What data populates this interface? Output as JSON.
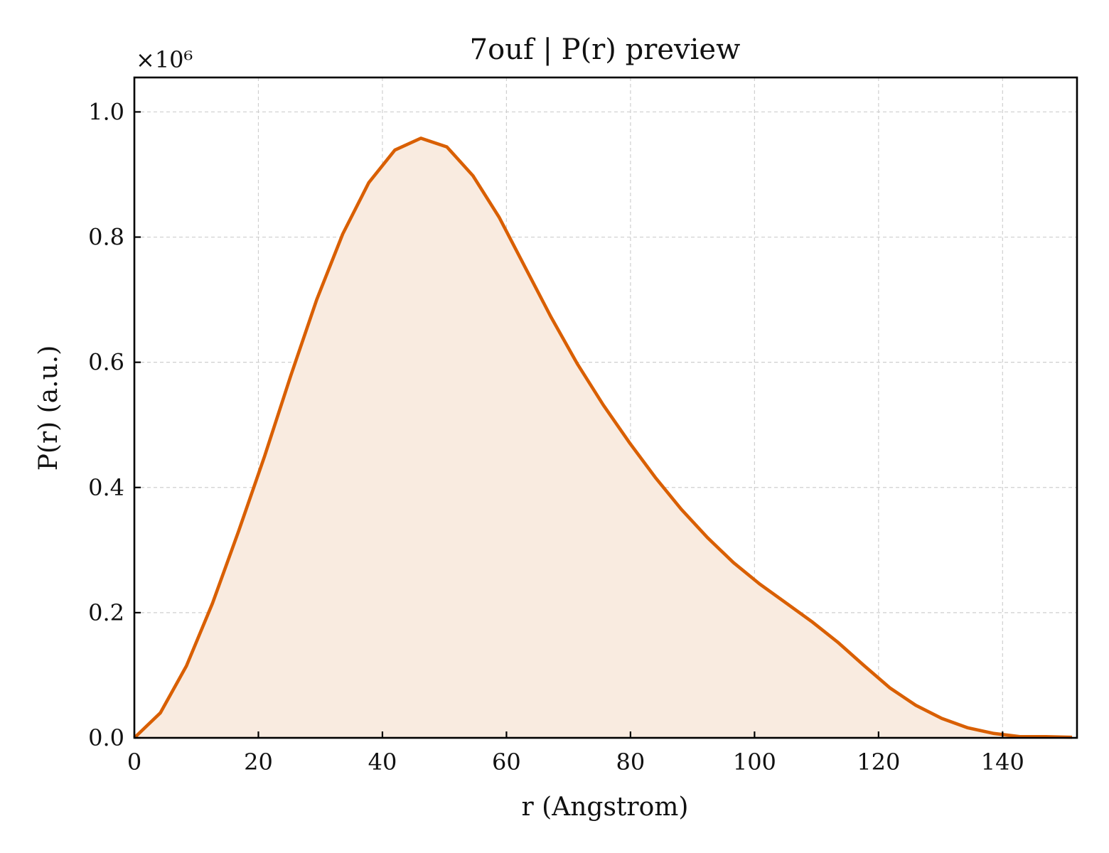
{
  "chart_data": {
    "type": "area",
    "title": "7ouf | P(r) preview",
    "xlabel": "r (Angstrom)",
    "ylabel": "P(r) (a.u.)",
    "y_multiplier_label": "×10⁶",
    "xlim": [
      0,
      152
    ],
    "ylim": [
      0,
      1.055
    ],
    "xticks": [
      0,
      20,
      40,
      60,
      80,
      100,
      120,
      140
    ],
    "xtick_labels": [
      "0",
      "20",
      "40",
      "60",
      "80",
      "100",
      "120",
      "140"
    ],
    "yticks": [
      0.0,
      0.2,
      0.4,
      0.6,
      0.8,
      1.0
    ],
    "ytick_labels": [
      "0.0",
      "0.2",
      "0.4",
      "0.6",
      "0.8",
      "1.0"
    ],
    "grid": true,
    "line_color": "#d95f02",
    "fill_color": "#f9ebe0",
    "series": [
      {
        "x": [
          0,
          4.2,
          8.4,
          12.6,
          16.8,
          21.0,
          25.2,
          29.4,
          33.6,
          37.8,
          42.0,
          46.2,
          50.4,
          54.6,
          58.8,
          63.0,
          67.2,
          71.4,
          75.6,
          79.8,
          84.0,
          88.2,
          92.4,
          96.6,
          100.8,
          105.0,
          109.2,
          113.4,
          117.6,
          121.8,
          126.0,
          130.2,
          134.4,
          138.6,
          142.8,
          147.0,
          151.2
        ],
        "y": [
          0.0,
          0.04,
          0.115,
          0.215,
          0.33,
          0.45,
          0.578,
          0.7,
          0.805,
          0.887,
          0.939,
          0.958,
          0.944,
          0.898,
          0.832,
          0.752,
          0.672,
          0.598,
          0.532,
          0.472,
          0.416,
          0.365,
          0.32,
          0.28,
          0.246,
          0.216,
          0.186,
          0.153,
          0.116,
          0.08,
          0.052,
          0.031,
          0.016,
          0.007,
          0.002,
          0.002,
          0.001
        ]
      }
    ]
  }
}
